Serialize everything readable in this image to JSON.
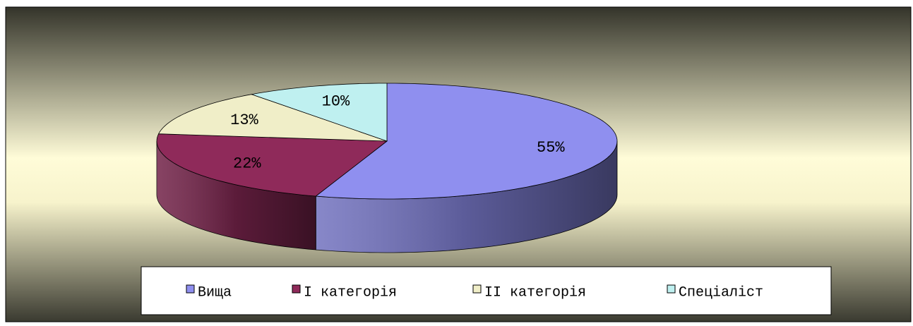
{
  "chart_data": {
    "type": "pie",
    "categories": [
      "Вища",
      "І категорія",
      "ІІ категорія",
      "Спеціаліст"
    ],
    "values": [
      55,
      22,
      13,
      10
    ],
    "value_labels": [
      "55%",
      "22%",
      "13%",
      "10%"
    ],
    "colors": [
      "#8f8fef",
      "#8f2a5a",
      "#f0eec8",
      "#bff0f0"
    ],
    "legend": "bottom"
  }
}
